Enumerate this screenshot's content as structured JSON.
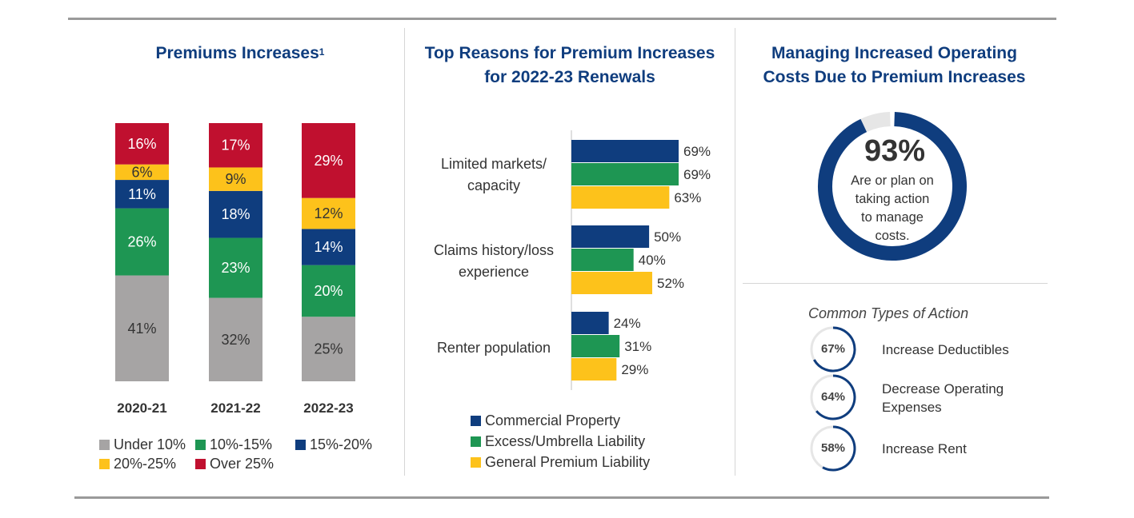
{
  "panel1": {
    "title": "Premiums Increases",
    "footnote": "1"
  },
  "panel2": {
    "title_line1": "Top Reasons for Premium Increases",
    "title_line2": "for 2022-23 Renewals"
  },
  "panel3": {
    "title_line1": "Managing Increased Operating",
    "title_line2": "Costs Due to Premium Increases",
    "headline_value": 93,
    "headline_label": "93%",
    "headline_text_lines": [
      "Are or plan on",
      "taking action",
      "to manage",
      "costs."
    ],
    "common_title": "Common Types of Action",
    "actions": [
      {
        "value": 67,
        "label": "67%",
        "text_lines": [
          "Increase Deductibles"
        ]
      },
      {
        "value": 64,
        "label": "64%",
        "text_lines": [
          "Decrease Operating",
          "Expenses"
        ]
      },
      {
        "value": 58,
        "label": "58%",
        "text_lines": [
          "Increase Rent"
        ]
      }
    ]
  },
  "colors": {
    "grey": "#a6a4a4",
    "green": "#1e9653",
    "navy": "#0f3d7e",
    "yellow": "#fdc21b",
    "red": "#c0102f",
    "track": "#e6e6e6"
  },
  "chart_data": [
    {
      "type": "bar",
      "orientation": "vertical",
      "stacked": true,
      "title": "Premiums Increases",
      "categories": [
        "2020-21",
        "2021-22",
        "2022-23"
      ],
      "series": [
        {
          "name": "Under 10%",
          "color": "#a6a4a4",
          "values": [
            41,
            32,
            25
          ]
        },
        {
          "name": "10%-15%",
          "color": "#1e9653",
          "values": [
            26,
            23,
            20
          ]
        },
        {
          "name": "15%-20%",
          "color": "#0f3d7e",
          "values": [
            11,
            18,
            14
          ]
        },
        {
          "name": "20%-25%",
          "color": "#fdc21b",
          "values": [
            6,
            9,
            12
          ]
        },
        {
          "name": "Over 25%",
          "color": "#c0102f",
          "values": [
            16,
            17,
            29
          ]
        }
      ],
      "ylim": [
        0,
        100
      ],
      "legend": "bottom"
    },
    {
      "type": "bar",
      "orientation": "horizontal",
      "title": "Top Reasons for Premium Increases for 2022-23 Renewals",
      "categories": [
        [
          "Limited markets/",
          "capacity"
        ],
        [
          "Claims history/loss",
          "experience"
        ],
        [
          "Renter population"
        ]
      ],
      "series": [
        {
          "name": "Commercial Property",
          "color": "#0f3d7e",
          "values": [
            69,
            50,
            24
          ]
        },
        {
          "name": "Excess/Umbrella Liability",
          "color": "#1e9653",
          "values": [
            69,
            40,
            31
          ]
        },
        {
          "name": "General Premium Liability",
          "color": "#fdc21b",
          "values": [
            63,
            52,
            29
          ]
        }
      ],
      "xlim": [
        0,
        100
      ],
      "legend": "bottom"
    }
  ]
}
